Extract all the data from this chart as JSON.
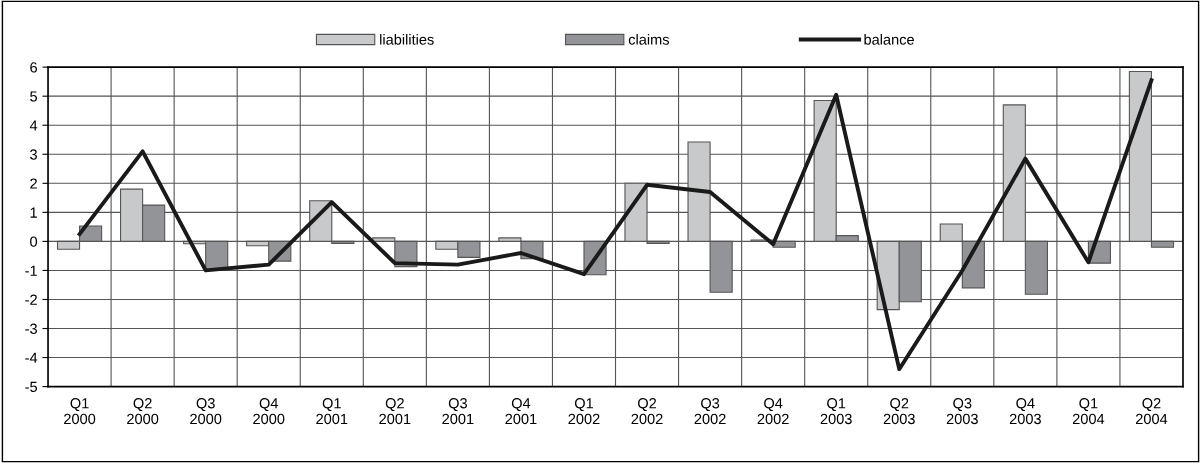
{
  "chart_data": {
    "type": "bar",
    "categories": [
      "Q1\n2000",
      "Q2\n2000",
      "Q3\n2000",
      "Q4\n2000",
      "Q1\n2001",
      "Q2\n2001",
      "Q3\n2001",
      "Q4\n2001",
      "Q1\n2002",
      "Q2\n2002",
      "Q3\n2002",
      "Q4\n2002",
      "Q1\n2003",
      "Q2\n2003",
      "Q3\n2003",
      "Q4\n2003",
      "Q1\n2004",
      "Q2\n2004"
    ],
    "series": [
      {
        "name": "liabilities",
        "color": "#c8c9cb",
        "values": [
          -0.27,
          1.8,
          -0.08,
          -0.15,
          1.4,
          0.12,
          -0.27,
          0.12,
          null,
          2.0,
          3.42,
          0.05,
          4.85,
          -2.35,
          0.6,
          4.7,
          null,
          5.85
        ]
      },
      {
        "name": "claims",
        "color": "#939497",
        "values": [
          0.53,
          1.25,
          -1.0,
          -0.68,
          -0.07,
          -0.87,
          -0.55,
          -0.6,
          -1.15,
          -0.07,
          -1.75,
          -0.2,
          0.2,
          -2.08,
          -1.6,
          -1.82,
          -0.75,
          -0.2
        ]
      },
      {
        "name": "balance",
        "type": "line",
        "color": "#1a1a1a",
        "values": [
          0.25,
          3.1,
          -1.0,
          -0.8,
          1.35,
          -0.75,
          -0.8,
          -0.4,
          -1.13,
          1.95,
          1.7,
          -0.1,
          5.05,
          -4.4,
          -1.0,
          2.85,
          -0.72,
          5.55
        ]
      }
    ],
    "ylim": [
      -5,
      6
    ],
    "yticks": [
      -5,
      -4,
      -3,
      -2,
      -1,
      0,
      1,
      2,
      3,
      4,
      5,
      6
    ],
    "grid": true,
    "legend": "top",
    "line_style": "solid",
    "marker": "none"
  }
}
